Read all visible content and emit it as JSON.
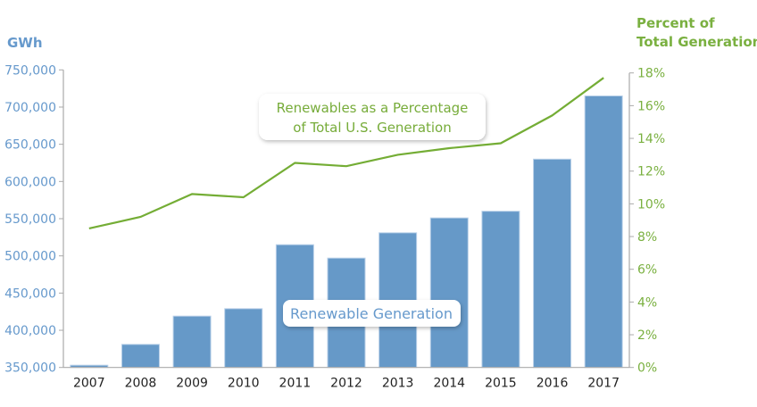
{
  "chart_data": {
    "type": "bar+line",
    "categories": [
      "2007",
      "2008",
      "2009",
      "2010",
      "2011",
      "2012",
      "2013",
      "2014",
      "2015",
      "2016",
      "2017"
    ],
    "series": [
      {
        "name": "Renewable Generation",
        "type": "bar",
        "axis": "left",
        "values": [
          353000,
          381000,
          419000,
          429000,
          515000,
          497000,
          531000,
          551000,
          560000,
          630000,
          715000
        ]
      },
      {
        "name": "Renewables as a Percentage of Total U.S. Generation",
        "type": "line",
        "axis": "right",
        "values": [
          8.5,
          9.2,
          10.6,
          10.4,
          12.5,
          12.3,
          13.0,
          13.4,
          13.7,
          15.4,
          17.7
        ]
      }
    ],
    "left_axis": {
      "label": "GWh",
      "ylim": [
        350000,
        750000
      ],
      "ticks": [
        "350,000",
        "400,000",
        "450,000",
        "500,000",
        "550,000",
        "600,000",
        "650,000",
        "700,000",
        "750,000"
      ]
    },
    "right_axis": {
      "label_lines": [
        "Percent of",
        "Total Generation"
      ],
      "ylim": [
        0,
        18
      ],
      "ticks": [
        "0%",
        "2%",
        "4%",
        "6%",
        "8%",
        "10%",
        "12%",
        "14%",
        "16%",
        "18%"
      ]
    },
    "annotations": {
      "line_label": [
        "Renewables as a Percentage",
        "of Total U.S. Generation"
      ],
      "bar_label": "Renewable Generation"
    },
    "grid": false,
    "colors": {
      "bar": "#6699c8",
      "line": "#74ad35",
      "left_axis_text": "#6699cc",
      "right_axis_text": "#7ab040"
    }
  }
}
